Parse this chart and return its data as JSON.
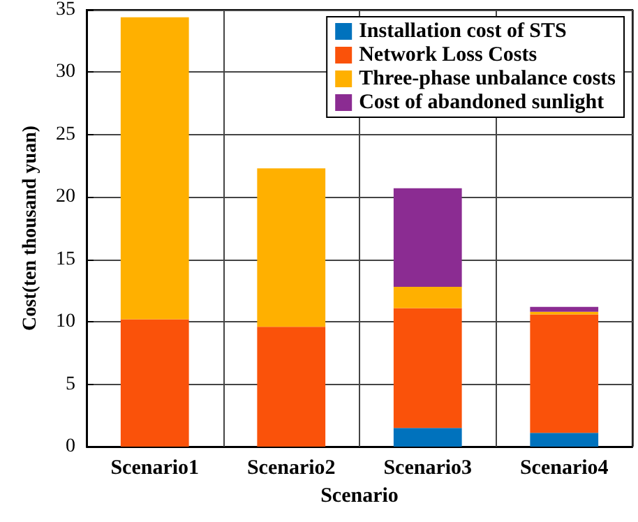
{
  "chart_data": {
    "type": "bar",
    "stacked": true,
    "xlabel": "Scenario",
    "ylabel": "Cost(ten thousand yuan)",
    "categories": [
      "Scenario1",
      "Scenario2",
      "Scenario3",
      "Scenario4"
    ],
    "series": [
      {
        "name": "Installation cost of STS",
        "color": "#0072bd",
        "values": [
          0,
          0,
          1.5,
          1.1
        ]
      },
      {
        "name": "Network Loss Costs",
        "color": "#fa520a",
        "values": [
          10.2,
          9.6,
          9.6,
          9.5
        ]
      },
      {
        "name": "Three-phase unbalance costs",
        "color": "#ffb000",
        "values": [
          24.2,
          12.7,
          1.7,
          0.2
        ]
      },
      {
        "name": "Cost of abandoned sunlight",
        "color": "#8b2c92",
        "values": [
          0,
          0,
          7.9,
          0.4
        ]
      }
    ],
    "ylim": [
      0,
      35
    ],
    "yticks": [
      0,
      5,
      10,
      15,
      20,
      25,
      30,
      35
    ],
    "grid": true,
    "legend": "top right"
  }
}
